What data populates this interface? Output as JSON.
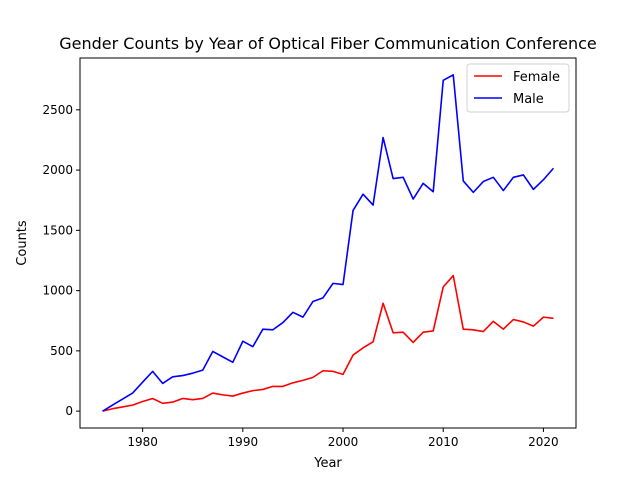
{
  "chart_data": {
    "type": "line",
    "title": "Gender Counts by Year of Optical Fiber Communication Conference",
    "xlabel": "Year",
    "ylabel": "Counts",
    "xlim": [
      1973.75,
      2023.25
    ],
    "ylim": [
      -140,
      2930
    ],
    "xticks": [
      1980,
      1990,
      2000,
      2010,
      2020
    ],
    "yticks": [
      0,
      500,
      1000,
      1500,
      2000,
      2500
    ],
    "grid": false,
    "legend_position": "top-right",
    "x": [
      1976,
      1977,
      1978,
      1979,
      1980,
      1981,
      1982,
      1983,
      1984,
      1985,
      1986,
      1987,
      1988,
      1989,
      1990,
      1991,
      1992,
      1993,
      1994,
      1995,
      1996,
      1997,
      1998,
      1999,
      2000,
      2001,
      2002,
      2003,
      2004,
      2005,
      2006,
      2007,
      2008,
      2009,
      2010,
      2011,
      2012,
      2013,
      2014,
      2015,
      2016,
      2017,
      2018,
      2019,
      2020,
      2021
    ],
    "series": [
      {
        "name": "Female",
        "color": "#ff0000",
        "values": [
          0,
          20,
          35,
          50,
          80,
          105,
          65,
          75,
          105,
          95,
          105,
          150,
          135,
          125,
          150,
          170,
          180,
          205,
          205,
          235,
          255,
          280,
          335,
          330,
          305,
          465,
          525,
          575,
          895,
          650,
          655,
          570,
          655,
          665,
          1030,
          1125,
          680,
          675,
          660,
          745,
          680,
          760,
          740,
          705,
          780,
          770
        ]
      },
      {
        "name": "Male",
        "color": "#0000ff",
        "values": [
          0,
          50,
          100,
          150,
          240,
          330,
          230,
          285,
          295,
          315,
          340,
          495,
          450,
          405,
          580,
          535,
          680,
          675,
          735,
          820,
          780,
          910,
          940,
          1060,
          1050,
          1665,
          1800,
          1710,
          2270,
          1930,
          1940,
          1760,
          1890,
          1820,
          2745,
          2790,
          1910,
          1815,
          1905,
          1940,
          1830,
          1940,
          1960,
          1840,
          1920,
          2015
        ]
      }
    ]
  }
}
